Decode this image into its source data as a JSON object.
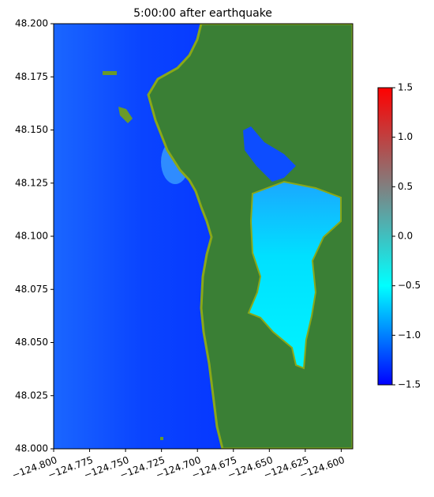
{
  "chart_data": {
    "type": "map",
    "title": "5:00:00 after earthquake",
    "xlim": [
      -124.8,
      -124.592
    ],
    "ylim": [
      48.0,
      48.2
    ],
    "xticks": [
      {
        "value": -124.8,
        "label": "−124.800"
      },
      {
        "value": -124.775,
        "label": "−124.775"
      },
      {
        "value": -124.75,
        "label": "−124.750"
      },
      {
        "value": -124.725,
        "label": "−124.725"
      },
      {
        "value": -124.7,
        "label": "−124.700"
      },
      {
        "value": -124.675,
        "label": "−124.675"
      },
      {
        "value": -124.65,
        "label": "−124.650"
      },
      {
        "value": -124.625,
        "label": "−124.625"
      },
      {
        "value": -124.6,
        "label": "−124.600"
      }
    ],
    "yticks": [
      {
        "value": 48.0,
        "label": "48.000"
      },
      {
        "value": 48.025,
        "label": "48.025"
      },
      {
        "value": 48.05,
        "label": "48.050"
      },
      {
        "value": 48.075,
        "label": "48.075"
      },
      {
        "value": 48.1,
        "label": "48.100"
      },
      {
        "value": 48.125,
        "label": "48.125"
      },
      {
        "value": 48.15,
        "label": "48.150"
      },
      {
        "value": 48.175,
        "label": "48.175"
      },
      {
        "value": 48.2,
        "label": "48.200"
      }
    ],
    "colorbar": {
      "lim": [
        -1.5,
        1.5
      ],
      "colors": [
        "#0000ff",
        "#00ffff",
        "#808080",
        "#ff0000"
      ],
      "ticks": [
        {
          "value": -1.5,
          "label": "−1.5"
        },
        {
          "value": -1,
          "label": "−1.0"
        },
        {
          "value": -0.5,
          "label": "−0.5"
        },
        {
          "value": 0,
          "label": "0.0"
        },
        0.5,
        {
          "value": 1,
          "label": "1.0"
        },
        1.5
      ]
    }
  }
}
